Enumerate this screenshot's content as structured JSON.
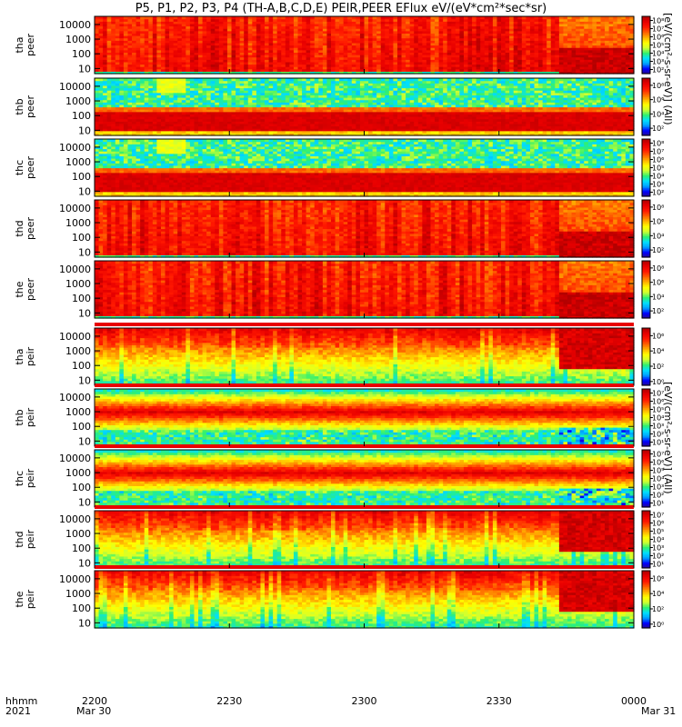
{
  "title": "P5, P1, P2, P3, P4 (TH-A,B,C,D,E) PEIR,PEER EFlux eV/(eV*cm²*sec*sr)",
  "colorbar_titles": {
    "top": "[eV/(cm²-s-sr-eV)] (All)",
    "bottom": "[eV/(cm²-s-sr-eV)] (All)"
  },
  "colors": {
    "background": "#ffffff",
    "frame": "#000000",
    "colormap": [
      "#2b0a8a",
      "#0000ff",
      "#00a0ff",
      "#00e0ff",
      "#30f070",
      "#d0ff30",
      "#ffff00",
      "#ffb000",
      "#ff6000",
      "#ff1800",
      "#e80000",
      "#b40000"
    ]
  },
  "time_labels": {
    "row_label": "hhmm",
    "year": "2021",
    "ticks": [
      "2200",
      "2230",
      "2300",
      "2330",
      "0000"
    ],
    "dates": [
      "Mar 30",
      "Mar 31"
    ]
  },
  "chart_data": {
    "type": "heatmap",
    "x_axis": {
      "label": "hhmm",
      "range": [
        "2021-03-30 22:00",
        "2021-03-31 00:00"
      ],
      "ticks": [
        "2200",
        "2230",
        "2300",
        "2330",
        "0000"
      ]
    },
    "y_scale": "log",
    "y_ticks": [
      "10",
      "100",
      "1000",
      "10000"
    ],
    "panels": [
      {
        "name": "tha peer",
        "label": [
          "tha",
          "peer"
        ],
        "cbar_ticks": [
          "10²",
          "10³",
          "10⁴",
          "10⁵",
          "10⁶",
          "10⁷",
          "10⁸"
        ],
        "cbar_range_log": [
          1.5,
          8.5
        ]
      },
      {
        "name": "thb peer",
        "label": [
          "thb",
          "peer"
        ],
        "cbar_ticks": [
          "10²",
          "10⁴",
          "10⁶",
          "10⁸"
        ],
        "cbar_range_log": [
          1,
          9
        ]
      },
      {
        "name": "thc peer",
        "label": [
          "thc",
          "peer"
        ],
        "cbar_ticks": [
          "10²",
          "10³",
          "10⁴",
          "10⁵",
          "10⁶",
          "10⁷",
          "10⁸"
        ],
        "cbar_range_log": [
          1.5,
          8.5
        ]
      },
      {
        "name": "thd peer",
        "label": [
          "thd",
          "peer"
        ],
        "cbar_ticks": [
          "10²",
          "10⁴",
          "10⁶",
          "10⁸"
        ],
        "cbar_range_log": [
          1,
          9
        ]
      },
      {
        "name": "the peer",
        "label": [
          "the",
          "peer"
        ],
        "cbar_ticks": [
          "10²",
          "10⁴",
          "10⁶",
          "10⁸"
        ],
        "cbar_range_log": [
          1,
          9
        ]
      },
      {
        "name": "tha peir",
        "label": [
          "tha",
          "peir"
        ],
        "cbar_ticks": [
          "10⁰",
          "10²",
          "10⁴",
          "10⁶"
        ],
        "cbar_range_log": [
          -0.5,
          7
        ]
      },
      {
        "name": "thb peir",
        "label": [
          "thb",
          "peir"
        ],
        "cbar_ticks": [
          "10¹",
          "10²",
          "10³",
          "10⁴",
          "10⁵",
          "10⁶",
          "10⁷"
        ],
        "cbar_range_log": [
          0.5,
          7.5
        ]
      },
      {
        "name": "thc peir",
        "label": [
          "thc",
          "peir"
        ],
        "cbar_ticks": [
          "10¹",
          "10²",
          "10³",
          "10⁴",
          "10⁵",
          "10⁶",
          "10⁷"
        ],
        "cbar_range_log": [
          0.5,
          7.5
        ]
      },
      {
        "name": "thd peir",
        "label": [
          "thd",
          "peir"
        ],
        "cbar_ticks": [
          "10¹",
          "10²",
          "10³",
          "10⁴",
          "10⁵",
          "10⁶",
          "10⁷"
        ],
        "cbar_range_log": [
          0.5,
          7.5
        ]
      },
      {
        "name": "the peir",
        "label": [
          "the",
          "peir"
        ],
        "cbar_ticks": [
          "10⁰",
          "10²",
          "10⁴",
          "10⁶"
        ],
        "cbar_range_log": [
          -0.5,
          7
        ]
      }
    ]
  }
}
